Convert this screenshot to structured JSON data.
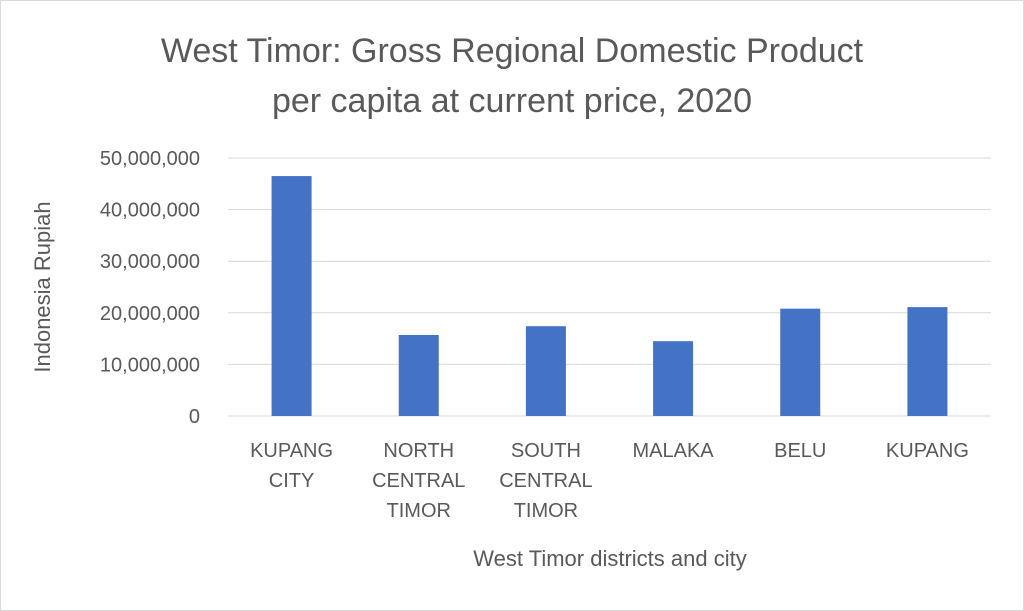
{
  "chart_data": {
    "type": "bar",
    "title_lines": [
      "West Timor: Gross Regional Domestic Product",
      "per capita at current price, 2020"
    ],
    "xlabel": "West Timor districts and city",
    "ylabel": "Indonesia Rupiah",
    "categories": [
      {
        "lines": [
          "KUPANG",
          "CITY"
        ]
      },
      {
        "lines": [
          "NORTH",
          "CENTRAL",
          "TIMOR"
        ]
      },
      {
        "lines": [
          "SOUTH",
          "CENTRAL",
          "TIMOR"
        ]
      },
      {
        "lines": [
          "MALAKA"
        ]
      },
      {
        "lines": [
          "BELU"
        ]
      },
      {
        "lines": [
          "KUPANG"
        ]
      }
    ],
    "values": [
      46500000,
      15700000,
      17400000,
      14500000,
      20800000,
      21100000
    ],
    "ylim": [
      0,
      50000000
    ],
    "yticks": [
      "0",
      "10,000,000",
      "20,000,000",
      "30,000,000",
      "40,000,000",
      "50,000,000"
    ],
    "grid": true,
    "legend": "none",
    "colors": {
      "bar": "#4472c4",
      "grid": "#d9d9d9",
      "text": "#595959"
    }
  }
}
